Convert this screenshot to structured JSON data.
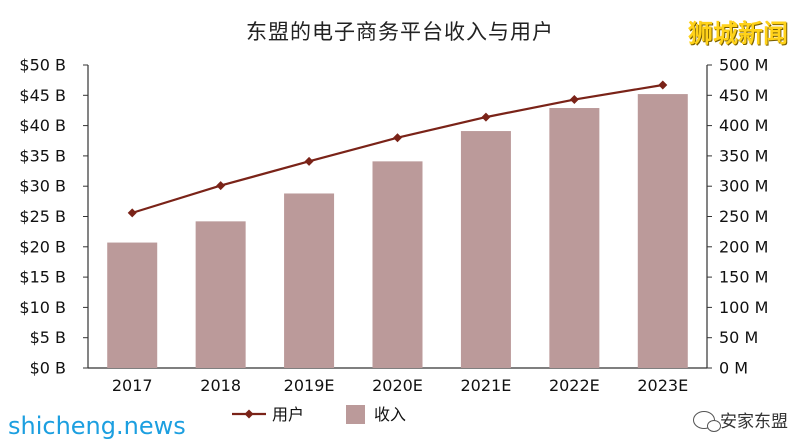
{
  "title": "东盟的电子商务平台收入与用户",
  "watermark_top": "狮城新闻",
  "watermark_left": "shicheng.news",
  "watermark_right": "安家东盟",
  "legend": {
    "users": "用户",
    "revenue": "收入"
  },
  "colors": {
    "bar": "#bb9a9a",
    "line": "#7a2318",
    "axis": "#333333"
  },
  "left_ticks": [
    "$0 B",
    "$5 B",
    "$10 B",
    "$15 B",
    "$20 B",
    "$25 B",
    "$30 B",
    "$35 B",
    "$40 B",
    "$45 B",
    "$50 B"
  ],
  "right_ticks": [
    "0 M",
    "50 M",
    "100 M",
    "150 M",
    "200 M",
    "250 M",
    "300 M",
    "350 M",
    "400 M",
    "450 M",
    "500 M"
  ],
  "chart_data": {
    "type": "bar",
    "title": "东盟的电子商务平台收入与用户",
    "categories": [
      "2017",
      "2018",
      "2019E",
      "2020E",
      "2021E",
      "2022E",
      "2023E"
    ],
    "series": [
      {
        "name": "收入",
        "kind": "bar",
        "axis": "left",
        "unit": "$ B",
        "values": [
          20.7,
          24.2,
          28.8,
          34.1,
          39.1,
          42.9,
          45.2
        ]
      },
      {
        "name": "用户",
        "kind": "line",
        "axis": "right",
        "unit": "M",
        "values": [
          256,
          301,
          341,
          380,
          414,
          443,
          467
        ]
      }
    ],
    "ylim_left": [
      0,
      50
    ],
    "ylim_right": [
      0,
      500
    ],
    "grid": false,
    "legend_position": "bottom"
  }
}
